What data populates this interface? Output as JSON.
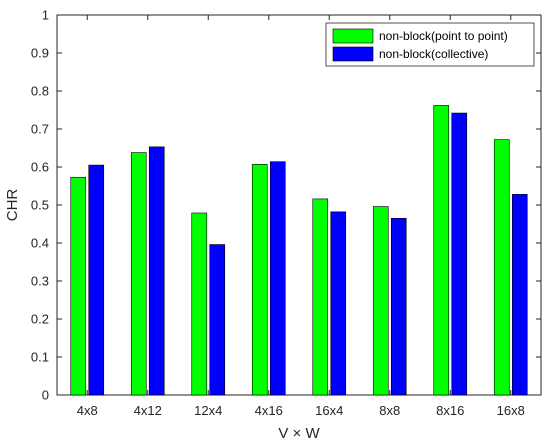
{
  "chart_data": {
    "type": "bar",
    "categories": [
      "4x8",
      "4x12",
      "12x4",
      "4x16",
      "16x4",
      "8x8",
      "8x16",
      "16x8"
    ],
    "series": [
      {
        "name": "non-block(point to point)",
        "color": "#00ff00",
        "values": [
          0.573,
          0.638,
          0.479,
          0.607,
          0.516,
          0.496,
          0.762,
          0.672
        ]
      },
      {
        "name": "non-block(collective)",
        "color": "#0000ff",
        "values": [
          0.605,
          0.653,
          0.396,
          0.614,
          0.482,
          0.465,
          0.742,
          0.528
        ]
      }
    ],
    "title": "",
    "xlabel": "V × W",
    "ylabel": "CHR",
    "ylim": [
      0,
      1
    ],
    "yticks": [
      "0",
      "0.1",
      "0.2",
      "0.3",
      "0.4",
      "0.5",
      "0.6",
      "0.7",
      "0.8",
      "0.9",
      "1"
    ],
    "grid": false,
    "legend_position": "top-right"
  }
}
